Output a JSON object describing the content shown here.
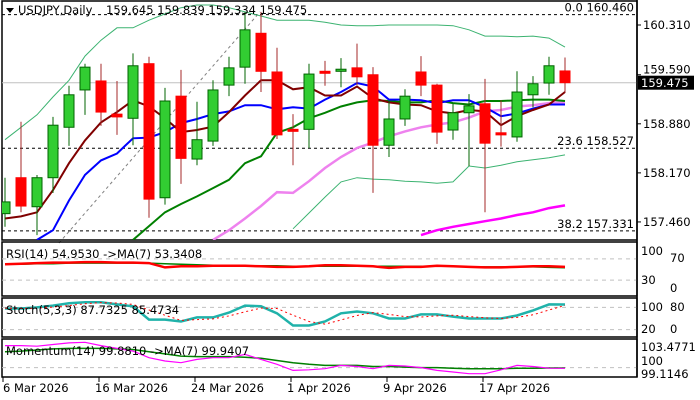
{
  "header": {
    "symbol_label": "USDJPY,Daily",
    "ohlc_label": "159.645 159.839 159.334 159.475",
    "menu_icon": "triangle-down-icon"
  },
  "colors": {
    "bull": "#32cd32",
    "bear": "#ff0000",
    "ma_fast": "#800000",
    "ma_mid": "#0000ff",
    "ma_slow": "#008000",
    "ma_long": "#ee82ee",
    "ma_200": "#ff00ff",
    "bands": "#3cb371",
    "stoch_main": "#20b2aa",
    "stoch_signal": "#ff0000",
    "rsi": "#ff0000",
    "rsi_ma": "#008000",
    "momentum": "#ff00ff",
    "momentum_ma": "#008000"
  },
  "price_axis": {
    "ticks": [
      "160.310",
      "159.590",
      "158.880",
      "158.170",
      "157.460"
    ],
    "current_price": "159.475"
  },
  "fib_levels": [
    {
      "label": "0.0 160.460",
      "price": 160.46
    },
    {
      "label": "23.6 158.527",
      "price": 158.527
    },
    {
      "label": "38.2 157.331",
      "price": 157.331
    }
  ],
  "date_axis": {
    "labels": [
      {
        "text": "6 Mar 2026",
        "index": 0
      },
      {
        "text": "16 Mar 2026",
        "index": 6
      },
      {
        "text": "24 Mar 2026",
        "index": 12
      },
      {
        "text": "1 Apr 2026",
        "index": 18
      },
      {
        "text": "9 Apr 2026",
        "index": 24
      },
      {
        "text": "17 Apr 2026",
        "index": 30
      }
    ]
  },
  "indicators": {
    "rsi": {
      "label": "RSI(14) 54.9530  ->MA(7) 53.3408",
      "ticks": [
        "100",
        "70",
        "30",
        "0"
      ]
    },
    "stoch": {
      "label": "Stoch(5,3,3) 87.7325 85.4734",
      "ticks": [
        "100",
        "80",
        "20",
        "0"
      ]
    },
    "momentum": {
      "label": "Momentum(14) 99.8810  ->MA(7) 99.9407",
      "ticks": [
        "103.4771",
        "100",
        "99.1146"
      ]
    }
  },
  "chart_data": {
    "type": "candlestick",
    "ylim": [
      157.2,
      160.56
    ],
    "candles": [
      [
        157.58,
        158.1,
        157.39,
        157.75
      ],
      [
        158.1,
        158.91,
        157.6,
        157.69
      ],
      [
        157.68,
        158.14,
        157.27,
        158.1
      ],
      [
        158.1,
        158.98,
        157.88,
        158.86
      ],
      [
        158.83,
        159.43,
        158.56,
        159.3
      ],
      [
        159.37,
        159.75,
        159.01,
        159.7
      ],
      [
        159.5,
        159.75,
        158.85,
        159.05
      ],
      [
        159.02,
        159.5,
        158.72,
        158.98
      ],
      [
        158.96,
        159.9,
        158.57,
        159.72
      ],
      [
        159.75,
        159.85,
        157.52,
        157.79
      ],
      [
        157.81,
        159.4,
        157.71,
        159.21
      ],
      [
        159.28,
        159.66,
        158.01,
        158.38
      ],
      [
        158.37,
        159.2,
        158.28,
        158.65
      ],
      [
        158.63,
        159.51,
        158.56,
        159.37
      ],
      [
        159.44,
        159.85,
        159.28,
        159.69
      ],
      [
        159.7,
        160.5,
        159.46,
        160.24
      ],
      [
        160.19,
        160.5,
        159.34,
        159.64
      ],
      [
        159.63,
        159.98,
        158.66,
        158.72
      ],
      [
        158.8,
        159.02,
        158.28,
        158.79
      ],
      [
        158.8,
        159.75,
        158.53,
        159.6
      ],
      [
        159.64,
        159.79,
        159.43,
        159.62
      ],
      [
        159.64,
        159.83,
        159.41,
        159.67
      ],
      [
        159.69,
        160.04,
        159.44,
        159.56
      ],
      [
        159.59,
        159.7,
        157.88,
        158.57
      ],
      [
        158.57,
        159.21,
        158.4,
        158.95
      ],
      [
        158.95,
        159.38,
        158.85,
        159.28
      ],
      [
        159.63,
        159.86,
        159.28,
        159.44
      ],
      [
        159.44,
        159.46,
        158.59,
        158.76
      ],
      [
        158.79,
        159.17,
        158.65,
        159.04
      ],
      [
        159.04,
        159.31,
        158.27,
        159.14
      ],
      [
        159.17,
        159.53,
        157.6,
        158.6
      ],
      [
        158.75,
        159.22,
        158.55,
        158.72
      ],
      [
        158.69,
        159.64,
        158.62,
        159.34
      ],
      [
        159.3,
        159.57,
        159.12,
        159.46
      ],
      [
        159.47,
        159.85,
        159.3,
        159.72
      ],
      [
        159.645,
        159.839,
        159.334,
        159.475
      ]
    ],
    "moving_averages": {
      "fast": [
        157.51,
        157.54,
        157.6,
        157.92,
        158.31,
        158.64,
        158.9,
        159.05,
        159.22,
        159.13,
        158.96,
        158.76,
        158.79,
        158.84,
        159.05,
        159.29,
        159.51,
        159.51,
        159.38,
        159.41,
        159.29,
        159.29,
        159.42,
        159.25,
        159.19,
        159.16,
        159.15,
        159.06,
        159.03,
        159.08,
        159.06,
        158.86,
        158.99,
        159.08,
        159.16,
        159.34
      ],
      "mid": [
        null,
        null,
        157.2,
        157.34,
        157.77,
        158.14,
        158.35,
        158.45,
        158.67,
        158.68,
        158.76,
        158.89,
        158.95,
        159.02,
        159.06,
        159.15,
        159.15,
        159.09,
        159.12,
        159.1,
        159.23,
        159.34,
        159.47,
        159.42,
        159.23,
        159.23,
        159.22,
        159.18,
        159.22,
        159.22,
        159.12,
        158.99,
        159.03,
        159.1,
        159.16,
        159.16
      ],
      "slow": [
        null,
        null,
        null,
        null,
        null,
        null,
        null,
        null,
        157.2,
        157.4,
        157.6,
        157.72,
        157.83,
        157.95,
        158.07,
        158.31,
        158.41,
        158.75,
        158.83,
        158.96,
        159.04,
        159.13,
        159.19,
        159.22,
        159.21,
        159.19,
        159.19,
        159.22,
        159.18,
        159.16,
        159.21,
        159.21,
        159.22,
        159.23,
        159.23,
        159.21
      ],
      "long": [
        null,
        null,
        null,
        null,
        null,
        null,
        null,
        null,
        null,
        null,
        null,
        null,
        null,
        157.2,
        157.34,
        157.51,
        157.69,
        157.89,
        157.88,
        158.05,
        158.24,
        158.4,
        158.53,
        158.61,
        158.7,
        158.77,
        158.83,
        158.87,
        158.9,
        158.97,
        159.06,
        159.08,
        159.13,
        159.15,
        159.18,
        159.19
      ],
      "ma200": [
        null,
        null,
        null,
        null,
        null,
        null,
        null,
        null,
        null,
        null,
        null,
        null,
        null,
        null,
        null,
        null,
        null,
        null,
        null,
        null,
        null,
        null,
        null,
        null,
        null,
        null,
        157.27,
        157.34,
        157.39,
        157.43,
        157.47,
        157.51,
        157.56,
        157.6,
        157.66,
        157.7
      ]
    },
    "bands": {
      "upper": [
        158.65,
        158.83,
        159.01,
        159.27,
        159.51,
        159.86,
        160.09,
        160.27,
        160.27,
        160.38,
        160.47,
        160.56,
        160.6,
        160.6,
        160.56,
        160.5,
        160.44,
        160.38,
        160.38,
        160.38,
        160.35,
        160.31,
        160.3,
        160.3,
        160.31,
        160.31,
        160.31,
        160.31,
        160.3,
        160.24,
        160.15,
        160.15,
        160.14,
        160.15,
        160.12,
        159.99
      ],
      "lower": [
        null,
        null,
        null,
        null,
        null,
        null,
        null,
        null,
        null,
        null,
        null,
        null,
        null,
        null,
        null,
        null,
        null,
        null,
        157.36,
        157.59,
        157.82,
        158.04,
        158.1,
        158.08,
        158.07,
        158.05,
        158.04,
        158.02,
        158.04,
        158.27,
        158.24,
        158.28,
        158.33,
        158.36,
        158.39,
        158.43
      ]
    },
    "trendline": {
      "from": [
        9,
        157.3
      ],
      "to": [
        15,
        160.5
      ]
    },
    "rsi": {
      "values": [
        60,
        61,
        62,
        63,
        63,
        64,
        64,
        63,
        63,
        62,
        54,
        56,
        56,
        57,
        57,
        57,
        56,
        55,
        55,
        56,
        58,
        58,
        57,
        56,
        53,
        55,
        55,
        57,
        56,
        55,
        54,
        54,
        55,
        56,
        56,
        54.953
      ],
      "ma": [
        60,
        60,
        61,
        61,
        62,
        62,
        62,
        62,
        62,
        62,
        61,
        60,
        59,
        58,
        57,
        57,
        57,
        57,
        56,
        56,
        56,
        56,
        56,
        56,
        56,
        56,
        56,
        56,
        56,
        55,
        55,
        55,
        55,
        55,
        54,
        53.341
      ],
      "ylim": [
        0,
        100
      ],
      "levels": [
        70,
        30
      ]
    },
    "stoch": {
      "main": [
        77,
        77,
        80,
        85,
        91,
        94,
        94,
        88,
        83,
        47,
        47,
        42,
        53,
        53,
        66,
        85,
        83,
        64,
        31,
        31,
        42,
        64,
        69,
        64,
        50,
        50,
        61,
        61,
        55,
        50,
        50,
        50,
        58,
        72,
        88,
        87.7325
      ],
      "signal": [
        78,
        77,
        78,
        81,
        85,
        90,
        93,
        92,
        88,
        73,
        59,
        45,
        47,
        49,
        57,
        68,
        78,
        77,
        59,
        42,
        35,
        46,
        58,
        66,
        61,
        55,
        54,
        57,
        59,
        55,
        52,
        50,
        53,
        60,
        73,
        85.4734
      ],
      "ylim": [
        0,
        100
      ],
      "levels": [
        80,
        20
      ]
    },
    "momentum": {
      "values": [
        104.0,
        104.0,
        103.9,
        104.2,
        104.5,
        104.6,
        104.0,
        103.5,
        103.0,
        101.8,
        101.2,
        100.9,
        101.5,
        101.8,
        101.8,
        102.4,
        101.5,
        100.6,
        99.5,
        99.6,
        99.8,
        100.4,
        100.2,
        99.8,
        100.4,
        100.3,
        100.0,
        99.5,
        99.2,
        98.9,
        98.9,
        99.6,
        100.4,
        100.2,
        99.9,
        99.881
      ],
      "ma": [
        102.9,
        103.0,
        103.2,
        103.4,
        103.5,
        103.5,
        103.5,
        103.4,
        103.3,
        102.9,
        102.5,
        102.1,
        102.0,
        102.0,
        102.0,
        101.9,
        101.7,
        101.3,
        100.9,
        100.6,
        100.4,
        100.4,
        100.4,
        100.2,
        100.2,
        100.1,
        100.0,
        100.0,
        99.9,
        99.8,
        99.8,
        99.8,
        99.9,
        99.9,
        99.94,
        99.9407
      ],
      "levels": [
        100
      ]
    }
  }
}
